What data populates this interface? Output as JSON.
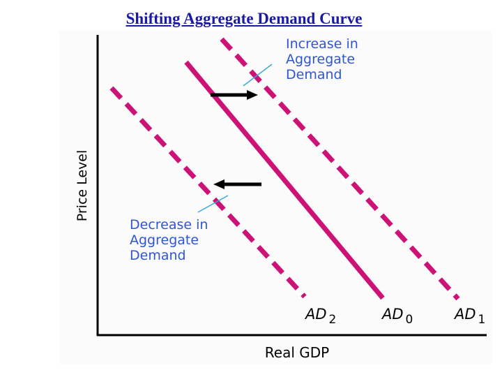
{
  "title": "Shifting Aggregate Demand Curve",
  "axes": {
    "x_label": "Real GDP",
    "y_label": "Price Level"
  },
  "annotations": {
    "increase": [
      "Increase in",
      "Aggregate",
      "Demand"
    ],
    "decrease": [
      "Decrease in",
      "Aggregate",
      "Demand"
    ]
  },
  "curves": [
    {
      "id": "AD2",
      "base": "AD",
      "sub": "2",
      "style": "dashed"
    },
    {
      "id": "AD0",
      "base": "AD",
      "sub": "0",
      "style": "solid"
    },
    {
      "id": "AD1",
      "base": "AD",
      "sub": "1",
      "style": "dashed"
    }
  ],
  "colors": {
    "curve": "#cc1177",
    "annotation_text": "#2e55d6",
    "leader_line": "#35a9d8",
    "axis": "#000000",
    "arrow": "#000000",
    "title": "#1a1aa6"
  }
}
